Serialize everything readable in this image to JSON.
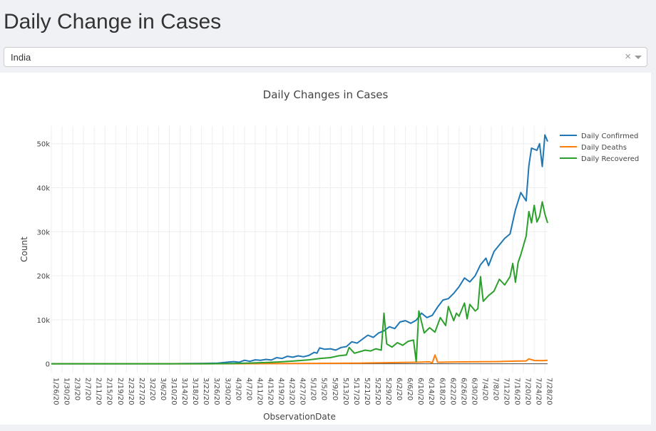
{
  "page": {
    "title": "Daily Change in Cases"
  },
  "country_select": {
    "value": "India",
    "clear_label": "×"
  },
  "chart_data": {
    "type": "line",
    "title": "Daily Changes in Cases",
    "xlabel": "ObservationDate",
    "ylabel": "Count",
    "x_start": "1/26/20",
    "x_end": "7/29/20",
    "tick_labels": [
      "1/26/20",
      "1/30/20",
      "2/3/20",
      "2/7/20",
      "2/11/20",
      "2/15/20",
      "2/19/20",
      "2/23/20",
      "2/27/20",
      "3/2/20",
      "3/6/20",
      "3/10/20",
      "3/14/20",
      "3/18/20",
      "3/22/20",
      "3/26/20",
      "3/30/20",
      "4/3/20",
      "4/7/20",
      "4/11/20",
      "4/15/20",
      "4/19/20",
      "4/23/20",
      "4/27/20",
      "5/1/20",
      "5/5/20",
      "5/9/20",
      "5/13/20",
      "5/17/20",
      "5/21/20",
      "5/25/20",
      "5/29/20",
      "6/2/20",
      "6/6/20",
      "6/10/20",
      "6/14/20",
      "6/18/20",
      "6/22/20",
      "6/26/20",
      "6/30/20",
      "7/4/20",
      "7/8/20",
      "7/12/20",
      "7/16/20",
      "7/20/20",
      "7/24/20",
      "7/28/20"
    ],
    "ylim": [
      -2000,
      54000
    ],
    "yticks": [
      0,
      10000,
      20000,
      30000,
      40000,
      50000
    ],
    "ytick_labels": [
      "0",
      "10k",
      "20k",
      "30k",
      "40k",
      "50k"
    ],
    "grid": true,
    "legend_position": "top-right",
    "series": [
      {
        "name": "Daily Confirmed",
        "color": "#1f77b4",
        "points": [
          [
            "1/26/20",
            0
          ],
          [
            "3/10/20",
            0
          ],
          [
            "3/22/20",
            80
          ],
          [
            "3/28/20",
            150
          ],
          [
            "4/1/20",
            400
          ],
          [
            "4/3/20",
            500
          ],
          [
            "4/5/20",
            350
          ],
          [
            "4/7/20",
            800
          ],
          [
            "4/9/20",
            550
          ],
          [
            "4/11/20",
            900
          ],
          [
            "4/13/20",
            800
          ],
          [
            "4/15/20",
            1000
          ],
          [
            "4/17/20",
            850
          ],
          [
            "4/19/20",
            1400
          ],
          [
            "4/21/20",
            1200
          ],
          [
            "4/23/20",
            1700
          ],
          [
            "4/25/20",
            1500
          ],
          [
            "4/27/20",
            1800
          ],
          [
            "4/29/20",
            1600
          ],
          [
            "5/1/20",
            1900
          ],
          [
            "5/3/20",
            2600
          ],
          [
            "5/4/20",
            2400
          ],
          [
            "5/5/20",
            3600
          ],
          [
            "5/7/20",
            3300
          ],
          [
            "5/9/20",
            3400
          ],
          [
            "5/11/20",
            3100
          ],
          [
            "5/13/20",
            3700
          ],
          [
            "5/15/20",
            3900
          ],
          [
            "5/17/20",
            5000
          ],
          [
            "5/19/20",
            4700
          ],
          [
            "5/21/20",
            5600
          ],
          [
            "5/23/20",
            6500
          ],
          [
            "5/25/20",
            6000
          ],
          [
            "5/27/20",
            7000
          ],
          [
            "5/29/20",
            7500
          ],
          [
            "5/31/20",
            8400
          ],
          [
            "6/2/20",
            8000
          ],
          [
            "6/4/20",
            9500
          ],
          [
            "6/6/20",
            9800
          ],
          [
            "6/8/20",
            9200
          ],
          [
            "6/10/20",
            9900
          ],
          [
            "6/12/20",
            11500
          ],
          [
            "6/14/20",
            10500
          ],
          [
            "6/16/20",
            11000
          ],
          [
            "6/18/20",
            12900
          ],
          [
            "6/20/20",
            14500
          ],
          [
            "6/22/20",
            14800
          ],
          [
            "6/24/20",
            16000
          ],
          [
            "6/26/20",
            17500
          ],
          [
            "6/28/20",
            19500
          ],
          [
            "6/30/20",
            18600
          ],
          [
            "7/2/20",
            20000
          ],
          [
            "7/4/20",
            22500
          ],
          [
            "7/6/20",
            24000
          ],
          [
            "7/7/20",
            22300
          ],
          [
            "7/9/20",
            25500
          ],
          [
            "7/11/20",
            27000
          ],
          [
            "7/13/20",
            28500
          ],
          [
            "7/15/20",
            29500
          ],
          [
            "7/17/20",
            35000
          ],
          [
            "7/19/20",
            38900
          ],
          [
            "7/21/20",
            37000
          ],
          [
            "7/22/20",
            45000
          ],
          [
            "7/23/20",
            49000
          ],
          [
            "7/25/20",
            48500
          ],
          [
            "7/26/20",
            50000
          ],
          [
            "7/27/20",
            44800
          ],
          [
            "7/28/20",
            52000
          ],
          [
            "7/29/20",
            50500
          ]
        ]
      },
      {
        "name": "Daily Deaths",
        "color": "#ff7f0e",
        "points": [
          [
            "1/26/20",
            0
          ],
          [
            "3/20/20",
            0
          ],
          [
            "4/10/20",
            30
          ],
          [
            "5/1/20",
            80
          ],
          [
            "5/20/20",
            150
          ],
          [
            "6/10/20",
            350
          ],
          [
            "6/15/20",
            450
          ],
          [
            "6/16/20",
            150
          ],
          [
            "6/17/20",
            2000
          ],
          [
            "6/18/20",
            350
          ],
          [
            "6/22/20",
            400
          ],
          [
            "7/1/20",
            450
          ],
          [
            "7/10/20",
            500
          ],
          [
            "7/17/20",
            600
          ],
          [
            "7/21/20",
            650
          ],
          [
            "7/22/20",
            1100
          ],
          [
            "7/24/20",
            750
          ],
          [
            "7/27/20",
            700
          ],
          [
            "7/29/20",
            800
          ]
        ]
      },
      {
        "name": "Daily Recovered",
        "color": "#2ca02c",
        "points": [
          [
            "1/26/20",
            0
          ],
          [
            "3/24/20",
            0
          ],
          [
            "4/3/20",
            50
          ],
          [
            "4/11/20",
            200
          ],
          [
            "4/19/20",
            400
          ],
          [
            "4/25/20",
            600
          ],
          [
            "5/1/20",
            900
          ],
          [
            "5/5/20",
            1200
          ],
          [
            "5/9/20",
            1400
          ],
          [
            "5/12/20",
            1800
          ],
          [
            "5/15/20",
            2000
          ],
          [
            "5/16/20",
            3700
          ],
          [
            "5/18/20",
            2400
          ],
          [
            "5/22/20",
            3100
          ],
          [
            "5/24/20",
            2900
          ],
          [
            "5/26/20",
            3400
          ],
          [
            "5/28/20",
            3100
          ],
          [
            "5/29/20",
            11500
          ],
          [
            "5/30/20",
            4500
          ],
          [
            "6/1/20",
            3800
          ],
          [
            "6/3/20",
            4800
          ],
          [
            "6/5/20",
            4200
          ],
          [
            "6/7/20",
            5100
          ],
          [
            "6/9/20",
            5400
          ],
          [
            "6/10/20",
            500
          ],
          [
            "6/11/20",
            12000
          ],
          [
            "6/13/20",
            7000
          ],
          [
            "6/15/20",
            8200
          ],
          [
            "6/17/20",
            7200
          ],
          [
            "6/19/20",
            10500
          ],
          [
            "6/21/20",
            8700
          ],
          [
            "6/22/20",
            13000
          ],
          [
            "6/24/20",
            9800
          ],
          [
            "6/25/20",
            11500
          ],
          [
            "6/26/20",
            10800
          ],
          [
            "6/28/20",
            13800
          ],
          [
            "6/29/20",
            10200
          ],
          [
            "6/30/20",
            13500
          ],
          [
            "7/2/20",
            12000
          ],
          [
            "7/3/20",
            12500
          ],
          [
            "7/4/20",
            19800
          ],
          [
            "7/5/20",
            14200
          ],
          [
            "7/7/20",
            15500
          ],
          [
            "7/9/20",
            16500
          ],
          [
            "7/11/20",
            19200
          ],
          [
            "7/13/20",
            17900
          ],
          [
            "7/15/20",
            19800
          ],
          [
            "7/16/20",
            22800
          ],
          [
            "7/17/20",
            18500
          ],
          [
            "7/18/20",
            23000
          ],
          [
            "7/19/20",
            24800
          ],
          [
            "7/21/20",
            29000
          ],
          [
            "7/22/20",
            34600
          ],
          [
            "7/23/20",
            32000
          ],
          [
            "7/24/20",
            36000
          ],
          [
            "7/25/20",
            32200
          ],
          [
            "7/26/20",
            33500
          ],
          [
            "7/27/20",
            36800
          ],
          [
            "7/28/20",
            34000
          ],
          [
            "7/29/20",
            32000
          ]
        ]
      }
    ]
  }
}
